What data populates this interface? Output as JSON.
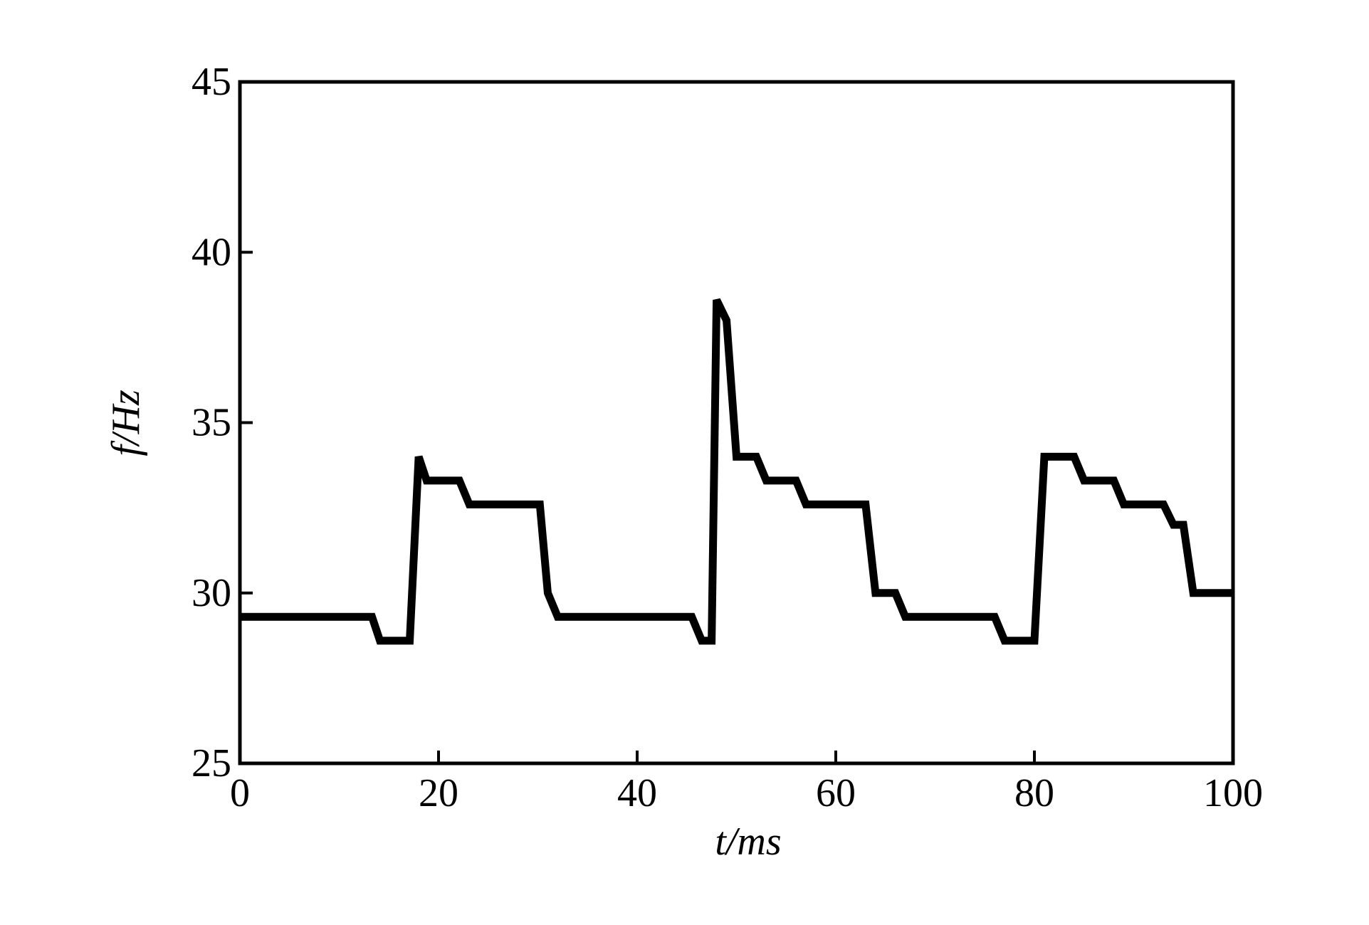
{
  "chart_data": {
    "type": "line",
    "xlabel": "t/ms",
    "ylabel": "f/Hz",
    "x": [
      0,
      13.3,
      14.1,
      17.1,
      18.0,
      18.8,
      22.1,
      23.1,
      30.2,
      31.0,
      32.0,
      45.5,
      46.5,
      47.5,
      48.0,
      49.0,
      50.0,
      52.0,
      53.0,
      56.0,
      57.0,
      63.0,
      64.0,
      66.0,
      67.0,
      76.0,
      77.0,
      80.0,
      81.0,
      84.0,
      85.0,
      88.0,
      89.0,
      93.0,
      94.0,
      95.0,
      96.0,
      100
    ],
    "series": [
      {
        "color": "#000000",
        "values": [
          29.3,
          29.3,
          28.6,
          28.6,
          34.0,
          33.3,
          33.3,
          32.6,
          32.6,
          30.0,
          29.3,
          29.3,
          28.6,
          28.6,
          38.6,
          38.0,
          34.0,
          34.0,
          33.3,
          33.3,
          32.6,
          32.6,
          30.0,
          30.0,
          29.3,
          29.3,
          28.6,
          28.6,
          34.0,
          34.0,
          33.3,
          33.3,
          32.6,
          32.6,
          32.0,
          32.0,
          30.0,
          30.0
        ]
      }
    ],
    "xlim": [
      0,
      100
    ],
    "xticks": [
      0,
      20,
      40,
      60,
      80,
      100
    ],
    "ylim": [
      25,
      45
    ],
    "yticks": [
      25,
      30,
      35,
      40,
      45
    ],
    "grid": false
  }
}
